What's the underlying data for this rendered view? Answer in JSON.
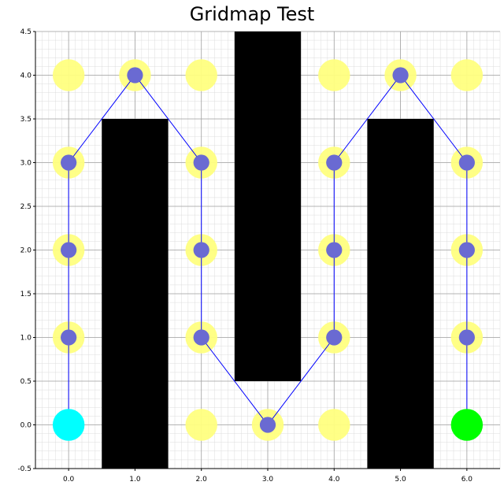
{
  "chart_data": {
    "type": "scatter",
    "title": "Gridmap Test",
    "xlabel": "",
    "ylabel": "",
    "xlim": [
      -0.5,
      6.5
    ],
    "ylim": [
      -0.5,
      4.5
    ],
    "xticks": [
      0.0,
      1.0,
      2.0,
      3.0,
      4.0,
      5.0,
      6.0
    ],
    "xtick_labels": [
      "0.0",
      "1.0",
      "2.0",
      "3.0",
      "4.0",
      "5.0",
      "6.0"
    ],
    "yticks": [
      -0.5,
      0.0,
      0.5,
      1.0,
      1.5,
      2.0,
      2.5,
      3.0,
      3.5,
      4.0,
      4.5
    ],
    "ytick_labels": [
      "-0.5",
      "0.0",
      "0.5",
      "1.0",
      "1.5",
      "2.0",
      "2.5",
      "3.0",
      "3.5",
      "4.0",
      "4.5"
    ],
    "grid": true,
    "minor_grid_step": 0.1,
    "obstacles": [
      {
        "x0": 0.5,
        "x1": 1.5,
        "y0": -0.5,
        "y1": 3.5
      },
      {
        "x0": 2.5,
        "x1": 3.5,
        "y0": 0.5,
        "y1": 4.5
      },
      {
        "x0": 4.5,
        "x1": 5.5,
        "y0": -0.5,
        "y1": 3.5
      }
    ],
    "free_cells": [
      [
        0,
        1
      ],
      [
        0,
        2
      ],
      [
        0,
        3
      ],
      [
        0,
        4
      ],
      [
        1,
        4
      ],
      [
        2,
        0
      ],
      [
        2,
        1
      ],
      [
        2,
        2
      ],
      [
        2,
        3
      ],
      [
        2,
        4
      ],
      [
        3,
        0
      ],
      [
        4,
        0
      ],
      [
        4,
        1
      ],
      [
        4,
        2
      ],
      [
        4,
        3
      ],
      [
        4,
        4
      ],
      [
        5,
        4
      ],
      [
        6,
        1
      ],
      [
        6,
        2
      ],
      [
        6,
        3
      ],
      [
        6,
        4
      ]
    ],
    "path": [
      [
        0,
        0
      ],
      [
        0,
        1
      ],
      [
        0,
        2
      ],
      [
        0,
        3
      ],
      [
        1,
        4
      ],
      [
        2,
        3
      ],
      [
        2,
        2
      ],
      [
        2,
        1
      ],
      [
        3,
        0
      ],
      [
        4,
        1
      ],
      [
        4,
        2
      ],
      [
        4,
        3
      ],
      [
        5,
        4
      ],
      [
        6,
        3
      ],
      [
        6,
        2
      ],
      [
        6,
        1
      ],
      [
        6,
        0
      ]
    ],
    "start": [
      0,
      0
    ],
    "goal": [
      6,
      0
    ],
    "colors": {
      "free_cell": "#ffff80",
      "path_node": "#6a6ad2",
      "path_line": "#0000ff",
      "obstacle": "#000000",
      "start": "#00ffff",
      "goal": "#00ff00",
      "grid_major": "#a0a0a0",
      "grid_minor": "#dcdcdc"
    }
  }
}
